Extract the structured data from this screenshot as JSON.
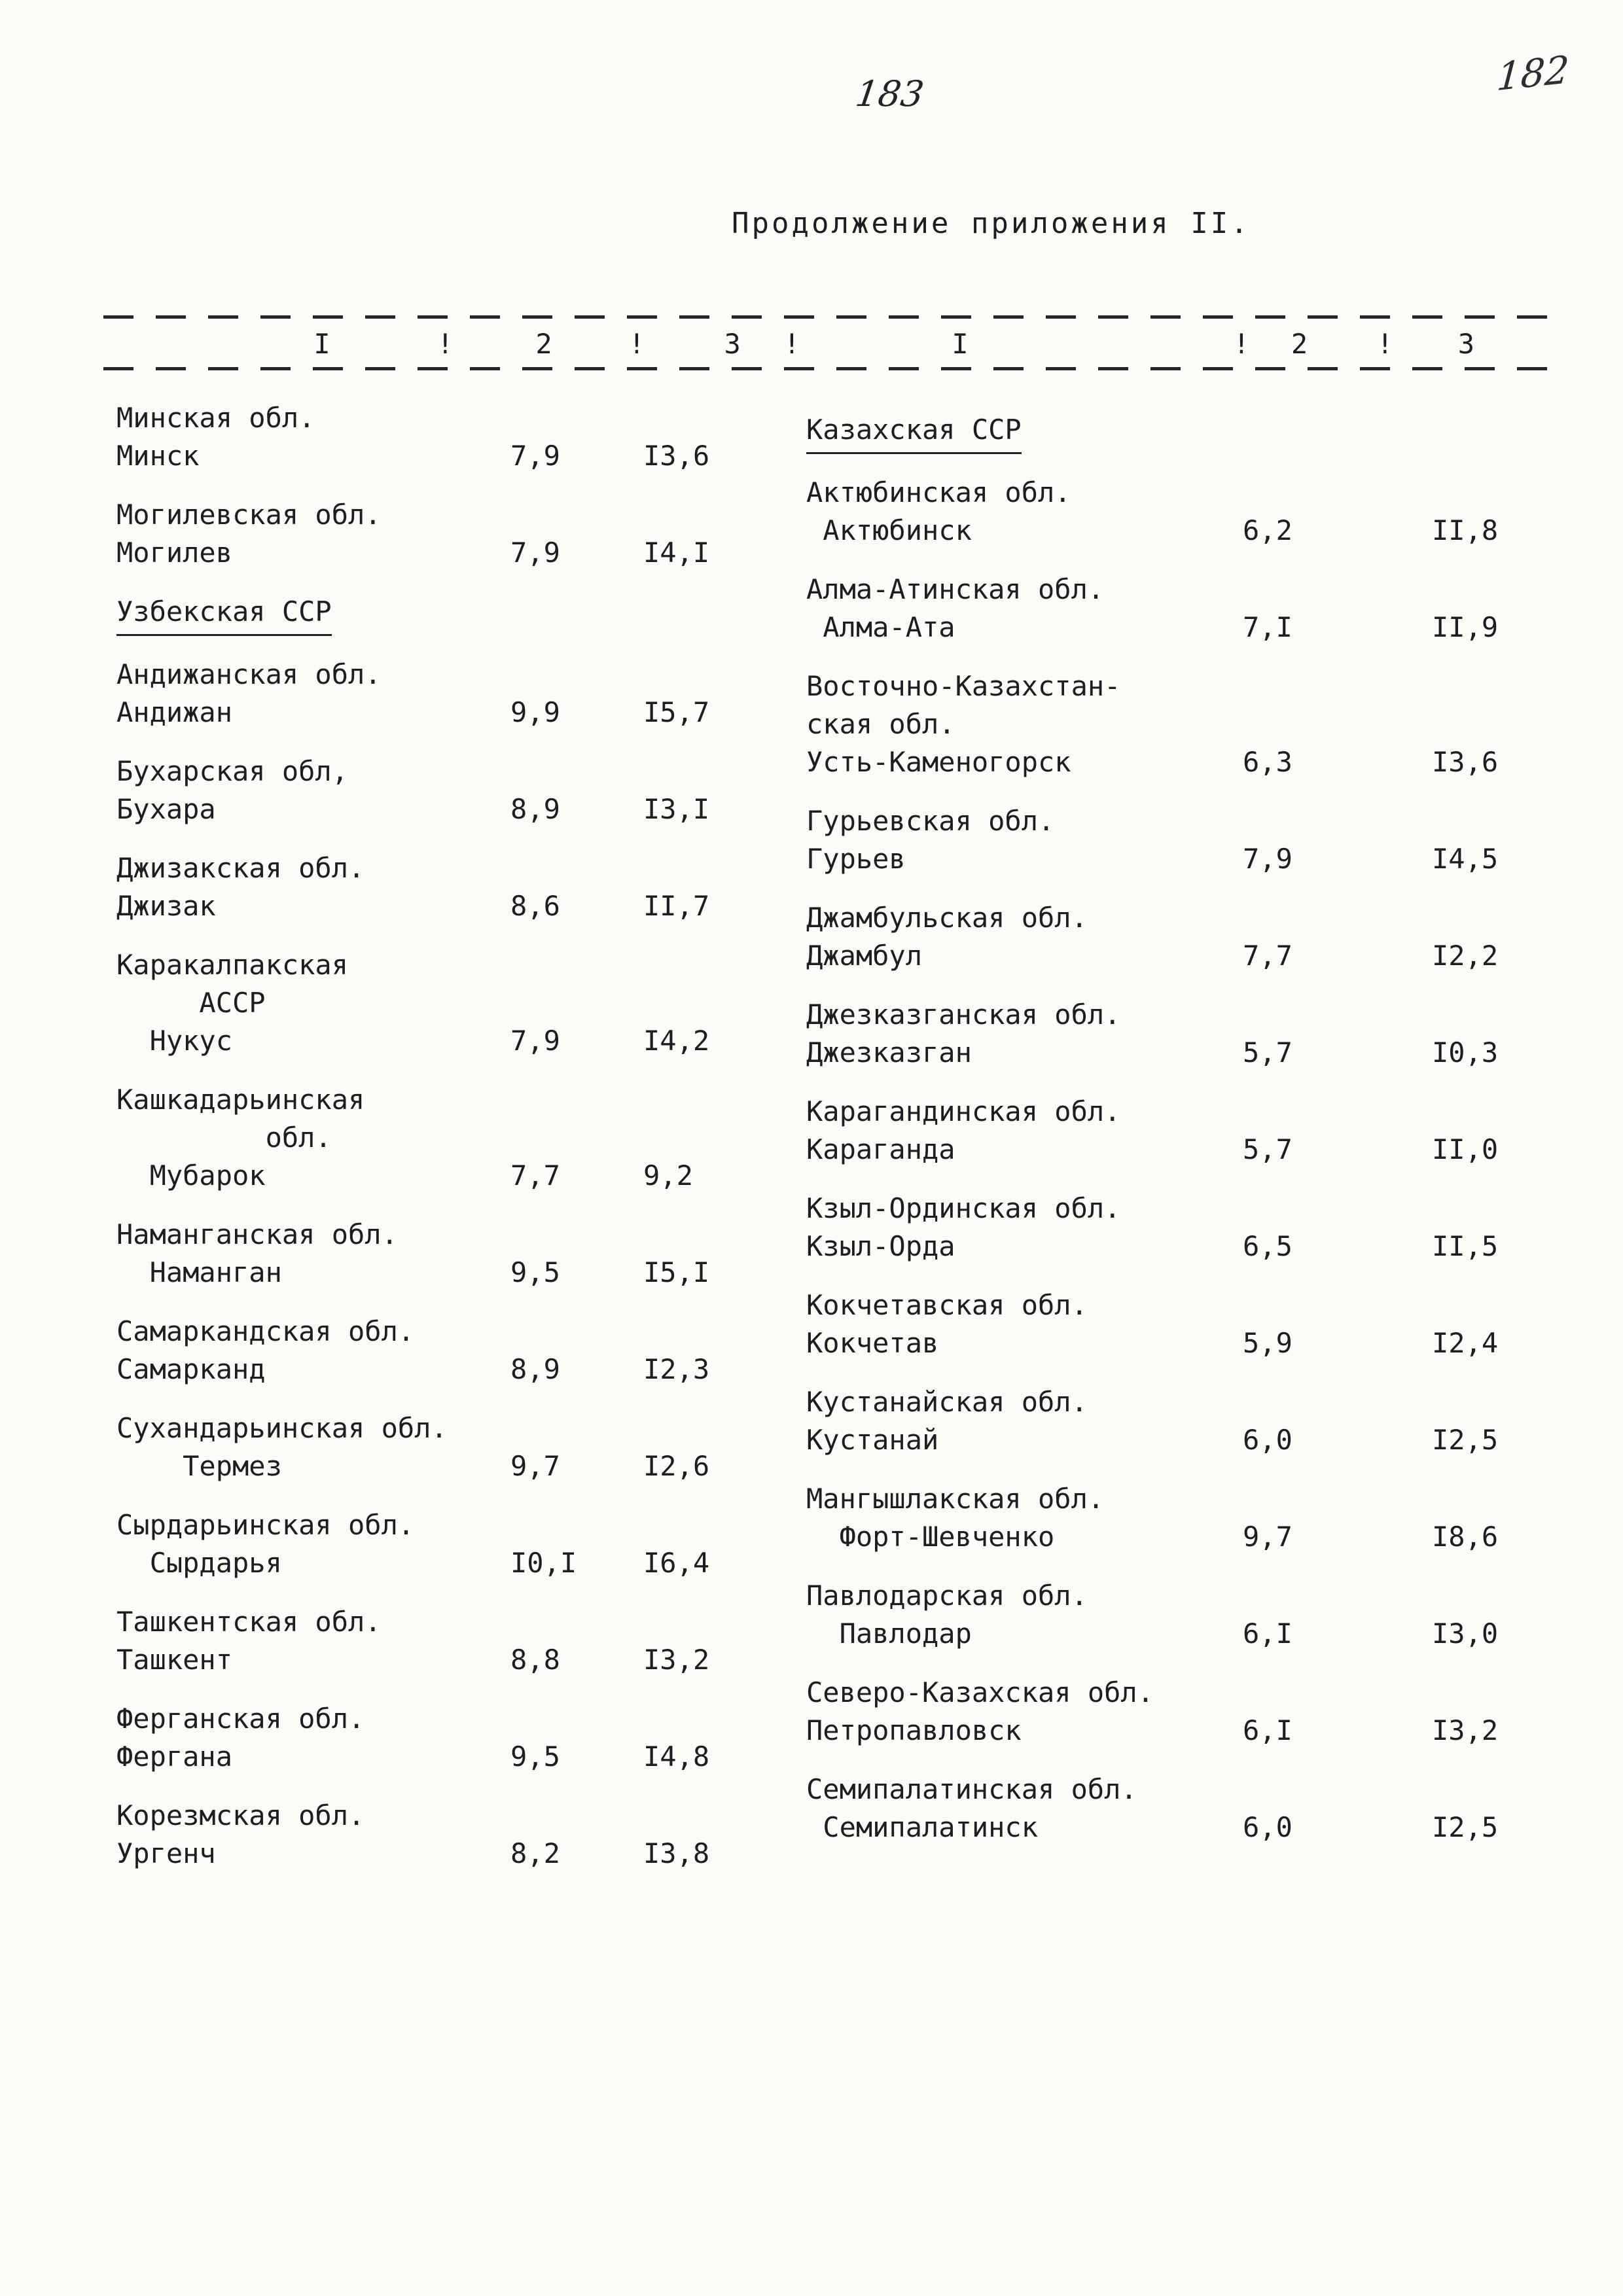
{
  "page": {
    "number_typed": "183",
    "number_handwritten": "182",
    "title": "Продолжение приложения II."
  },
  "table": {
    "header": [
      "I",
      "!",
      "2",
      "!",
      "3",
      "!",
      "I",
      "!",
      "2",
      "!",
      "3"
    ],
    "left": [
      {
        "region": "Минская обл.",
        "city": "Минск",
        "v1": "7,9",
        "v2": "I3,6"
      },
      {
        "region": "Могилевская обл.",
        "city": "Могилев",
        "v1": "7,9",
        "v2": "I4,I"
      },
      {
        "section": "Узбекская ССР"
      },
      {
        "region": "Андижанская обл.",
        "city": "Андижан",
        "v1": "9,9",
        "v2": "I5,7"
      },
      {
        "region": "Бухарская обл,",
        "city": "Бухара",
        "v1": "8,9",
        "v2": "I3,I"
      },
      {
        "region": "Джизакская обл.",
        "city": "Джизак",
        "v1": "8,6",
        "v2": "II,7"
      },
      {
        "region": "Каракалпакская",
        "region2": "     АССР",
        "city": "  Нукус",
        "v1": "7,9",
        "v2": "I4,2"
      },
      {
        "region": "Кашкадарьинская",
        "region2": "         обл.",
        "city": "  Мубарок",
        "v1": "7,7",
        "v2": "9,2"
      },
      {
        "region": "Наманганская обл.",
        "city": "  Наманган",
        "v1": "9,5",
        "v2": "I5,I"
      },
      {
        "region": "Самаркандская обл.",
        "city": "Самарканд",
        "v1": "8,9",
        "v2": "I2,3"
      },
      {
        "region": "Сухандарьинская обл.",
        "city": "    Термез",
        "v1": "9,7",
        "v2": "I2,6"
      },
      {
        "region": "Сырдарьинская обл.",
        "city": "  Сырдарья",
        "v1": "I0,I",
        "v2": "I6,4"
      },
      {
        "region": "Ташкентская обл.",
        "city": "Ташкент",
        "v1": "8,8",
        "v2": "I3,2"
      },
      {
        "region": "Ферганская обл.",
        "city": "Фергана",
        "v1": "9,5",
        "v2": "I4,8"
      },
      {
        "region": "Корезмская обл.",
        "city": "Ургенч",
        "v1": "8,2",
        "v2": "I3,8"
      }
    ],
    "right": [
      {
        "section": "Казахская ССР"
      },
      {
        "region": "Актюбинская обл.",
        "city": " Актюбинск",
        "v1": "6,2",
        "v2": "II,8"
      },
      {
        "region": "Алма-Атинская обл.",
        "city": " Алма-Ата",
        "v1": "7,I",
        "v2": "II,9"
      },
      {
        "region": "Восточно-Казахстан-",
        "region2": "ская обл.",
        "city": "Усть-Каменогорск",
        "v1": "6,3",
        "v2": "I3,6"
      },
      {
        "region": "Гурьевская обл.",
        "city": "Гурьев",
        "v1": "7,9",
        "v2": "I4,5"
      },
      {
        "region": "Джамбульская обл.",
        "city": "Джамбул",
        "v1": "7,7",
        "v2": "I2,2"
      },
      {
        "region": "Джезказганская обл.",
        "city": "Джезказган",
        "v1": "5,7",
        "v2": "I0,3"
      },
      {
        "region": "Карагандинская обл.",
        "city": "Караганда",
        "v1": "5,7",
        "v2": "II,0"
      },
      {
        "region": "Кзыл-Ординская обл.",
        "city": "Кзыл-Орда",
        "v1": "6,5",
        "v2": "II,5"
      },
      {
        "region": "Кокчетавская обл.",
        "city": "Кокчетав",
        "v1": "5,9",
        "v2": "I2,4"
      },
      {
        "region": "Кустанайская обл.",
        "city": "Кустанай",
        "v1": "6,0",
        "v2": "I2,5"
      },
      {
        "region": "Мангышлакская обл.",
        "city": "  Форт-Шевченко",
        "v1": "9,7",
        "v2": "I8,6"
      },
      {
        "region": "Павлодарская обл.",
        "city": "  Павлодар",
        "v1": "6,I",
        "v2": "I3,0"
      },
      {
        "region": "Северо-Казахская обл.",
        "city": "Петропавловск",
        "v1": "6,I",
        "v2": "I3,2"
      },
      {
        "region": "Семипалатинская обл.",
        "city": " Семипалатинск",
        "v1": "6,0",
        "v2": "I2,5"
      }
    ]
  }
}
